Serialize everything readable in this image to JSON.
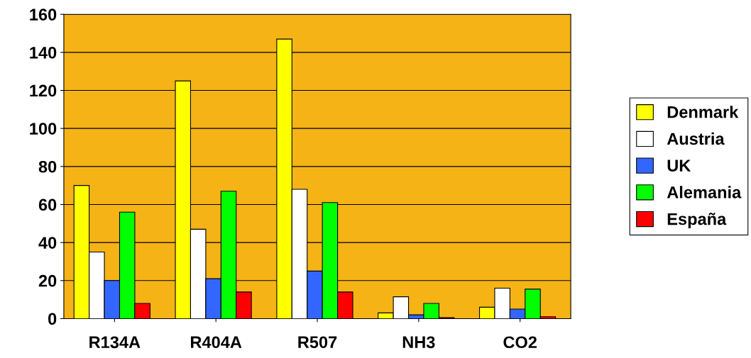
{
  "chart_data": {
    "type": "bar",
    "categories": [
      "R134A",
      "R404A",
      "R507",
      "NH3",
      "CO2"
    ],
    "series": [
      {
        "name": "Denmark",
        "color": "#ffff00",
        "values": [
          70,
          125,
          147,
          3,
          6
        ]
      },
      {
        "name": "Austria",
        "color": "#ffffff",
        "values": [
          35,
          47,
          68,
          11.5,
          16
        ]
      },
      {
        "name": "UK",
        "color": "#3366ff",
        "values": [
          20,
          21,
          25,
          2,
          5
        ]
      },
      {
        "name": "Alemania",
        "color": "#00ff00",
        "values": [
          56,
          67,
          61,
          8,
          15.5
        ]
      },
      {
        "name": "España",
        "color": "#ff0000",
        "values": [
          8,
          14,
          14,
          0.5,
          1
        ]
      }
    ],
    "ylim": [
      0,
      160
    ],
    "yticks": [
      0,
      20,
      40,
      60,
      80,
      100,
      120,
      140,
      160
    ],
    "grid": "y",
    "legend": "right"
  }
}
